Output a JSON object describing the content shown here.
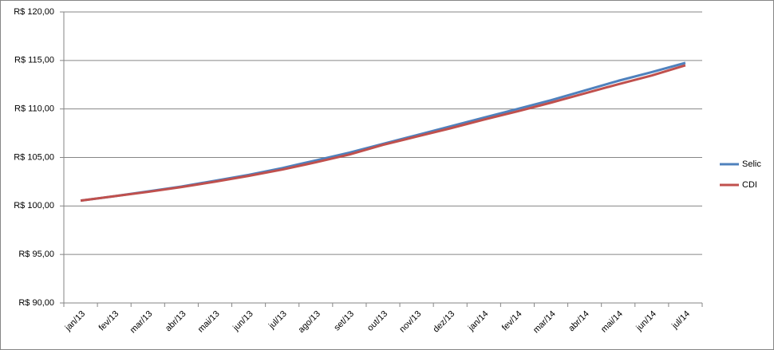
{
  "chart_data": {
    "type": "line",
    "categories": [
      "jan/13",
      "fev/13",
      "mar/13",
      "abr/13",
      "mai/13",
      "jun/13",
      "jul/13",
      "ago/13",
      "set/13",
      "out/13",
      "nov/13",
      "dez/13",
      "jan/14",
      "fev/14",
      "mar/14",
      "abr/14",
      "mai/14",
      "jun/14",
      "jul/14"
    ],
    "series": [
      {
        "name": "Selic",
        "color": "#4f81bd",
        "values": [
          100.55,
          101.0,
          101.5,
          102.0,
          102.6,
          103.2,
          103.9,
          104.7,
          105.5,
          106.4,
          107.3,
          108.2,
          109.1,
          110.0,
          110.9,
          111.9,
          112.9,
          113.8,
          114.75
        ]
      },
      {
        "name": "CDI",
        "color": "#c0504d",
        "values": [
          100.55,
          101.0,
          101.45,
          101.95,
          102.5,
          103.1,
          103.75,
          104.5,
          105.3,
          106.3,
          107.15,
          108.0,
          108.9,
          109.75,
          110.65,
          111.6,
          112.55,
          113.45,
          114.5
        ]
      }
    ],
    "ylim": [
      90,
      120
    ],
    "yticks": [
      {
        "value": 90,
        "label": "R$ 90,00"
      },
      {
        "value": 95,
        "label": "R$ 95,00"
      },
      {
        "value": 100,
        "label": "R$ 100,00"
      },
      {
        "value": 105,
        "label": "R$ 105,00"
      },
      {
        "value": 110,
        "label": "R$ 110,00"
      },
      {
        "value": 115,
        "label": "R$ 115,00"
      },
      {
        "value": 120,
        "label": "R$ 120,00"
      }
    ],
    "grid": true,
    "legend": "right"
  }
}
